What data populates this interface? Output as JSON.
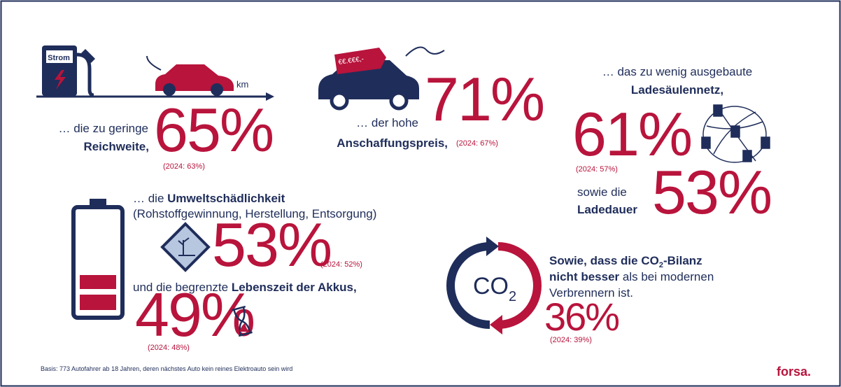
{
  "reichweite": {
    "line1": "… die zu geringe",
    "line2": "Reichweite,",
    "percent": "65%",
    "previous": "(2024: 63%)"
  },
  "preis": {
    "line1": "… der hohe",
    "line2": "Anschaffungspreis,",
    "percent": "71%",
    "previous": "(2024: 67%)"
  },
  "ladenetz": {
    "line1": "… das zu wenig ausgebaute",
    "line2": "Ladesäulennetz,",
    "percent": "61%",
    "previous": "(2024: 57%)"
  },
  "ladedauer": {
    "line1": "sowie die",
    "line2": "Ladedauer",
    "percent": "53%"
  },
  "umwelt": {
    "intro": "… die ",
    "bold": "Umweltschädlichkeit",
    "line2": "(Rohstoffgewinnung, Herstellung, Entsorgung)",
    "percent": "53%",
    "previous": "(2024: 52%)"
  },
  "akkus": {
    "intro": "und die begrenzte ",
    "bold": "Lebenszeit der Akkus,",
    "percent": "49%",
    "previous": "(2024: 48%)"
  },
  "co2bilanz": {
    "line1a": "Sowie, dass die CO",
    "line1sub": "2",
    "line1b": "-Bilanz",
    "line2bold": "nicht besser",
    "line2": " als bei modernen",
    "line3": "Verbrennern ist.",
    "percent": "36%",
    "previous": "(2024: 39%)"
  },
  "icons": {
    "pump": "Strom",
    "distance": "km",
    "price_tag": "€€.€€€,-",
    "co2": "CO",
    "co2_sub": "2"
  },
  "footer": {
    "basis": "Basis: 773 Autofahrer ab 18 Jahren, deren nächstes Auto kein reines Elektroauto sein wird",
    "brand": "forsa."
  }
}
